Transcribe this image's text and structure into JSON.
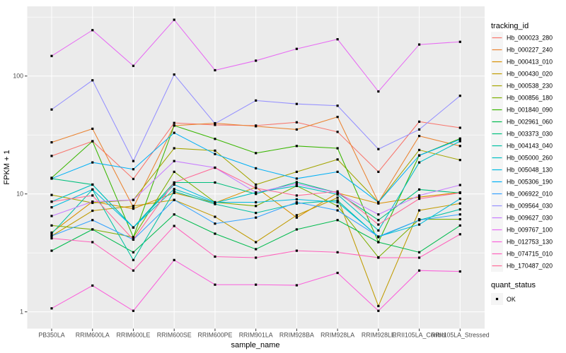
{
  "figure": {
    "x_axis_title": "sample_name",
    "y_axis_title": "FPKM + 1",
    "y_tick_labels": [
      "100",
      "10",
      "1"
    ]
  },
  "legend": {
    "tracking_title": "tracking_id",
    "quant_title": "quant_status",
    "quant_ok_label": "OK",
    "quant_key_shape": "black-square-point"
  },
  "chart_data": {
    "type": "line",
    "title": "",
    "xlabel": "sample_name",
    "ylabel": "FPKM + 1",
    "y_scale": "log10",
    "ylim": [
      0.72,
      390
    ],
    "y_ticks": [
      100,
      10,
      1
    ],
    "y_minor": [
      316.2,
      31.62,
      3.162
    ],
    "grid": true,
    "grid_color": "#FFFFFF",
    "panel_bg": "#EBEBEB",
    "point_color": "#000000",
    "point_shape": "square",
    "axis_text_color": "#4D4D4D",
    "legend_position": "right",
    "legend_key_bg": "#F5F5F5",
    "categories": [
      "PB350LA",
      "RRIM600LA",
      "RRIM600LE",
      "RRIM600SE",
      "RRIM600PE",
      "RRIM901LA",
      "RRIM928BA",
      "RRIM928LA",
      "RRIM928LE",
      "RRII105LA_Control",
      "RRII105LA_Stressed"
    ],
    "series": [
      {
        "name": "Hb_000023_280",
        "color": "#F8766D",
        "values": [
          21,
          28,
          13.4,
          40,
          38.5,
          38,
          40.5,
          33.6,
          15.4,
          41,
          36.4
        ]
      },
      {
        "name": "Hb_000227_240",
        "color": "#EA8331",
        "values": [
          27.4,
          35.7,
          7.7,
          38,
          39.8,
          37.5,
          35.2,
          45,
          8.5,
          31,
          25.5
        ]
      },
      {
        "name": "Hb_000413_010",
        "color": "#D89000",
        "values": [
          4.7,
          8.6,
          7.5,
          10.2,
          8.4,
          11.4,
          6.3,
          10.2,
          8.3,
          9.4,
          10.3
        ]
      },
      {
        "name": "Hb_000430_020",
        "color": "#C09B00",
        "values": [
          4.4,
          7.2,
          7.9,
          8.9,
          6.4,
          3.9,
          6.6,
          9.3,
          1.12,
          7.25,
          8.3
        ]
      },
      {
        "name": "Hb_000538_230",
        "color": "#A3A500",
        "values": [
          9.8,
          8.4,
          8.9,
          24.4,
          23.3,
          12,
          15.4,
          19.6,
          8.5,
          23.6,
          19.4
        ]
      },
      {
        "name": "Hb_000856_180",
        "color": "#7CAE00",
        "values": [
          5.4,
          5,
          4.3,
          15.4,
          8.5,
          7.9,
          11.7,
          7.9,
          2.9,
          6.1,
          6.1
        ]
      },
      {
        "name": "Hb_001840_090",
        "color": "#39B600",
        "values": [
          13.7,
          28,
          4.3,
          38,
          29.3,
          22.2,
          25.5,
          24.4,
          3.9,
          21.2,
          29.5
        ]
      },
      {
        "name": "Hb_002961_060",
        "color": "#00BB4E",
        "values": [
          3.3,
          5,
          3.2,
          6.7,
          4.6,
          3.4,
          5,
          6,
          3.9,
          3.2,
          5.4
        ]
      },
      {
        "name": "Hb_003373_030",
        "color": "#00BF7D",
        "values": [
          13.5,
          12,
          5.2,
          12.5,
          12.5,
          10,
          12.6,
          10.2,
          6,
          10.9,
          10.2
        ]
      },
      {
        "name": "Hb_004143_040",
        "color": "#00C1A3",
        "values": [
          4.6,
          10.9,
          2.75,
          10.5,
          8.2,
          6.9,
          8.3,
          8.8,
          4.3,
          6,
          7.4
        ]
      },
      {
        "name": "Hb_005000_260",
        "color": "#00BFC4",
        "values": [
          8.6,
          12,
          5.2,
          11,
          8.4,
          10.3,
          11.7,
          9.9,
          4.9,
          18.5,
          28
        ]
      },
      {
        "name": "Hb_005048_130",
        "color": "#00BAE0",
        "values": [
          7.7,
          10.9,
          5.2,
          12,
          8.5,
          8.5,
          9,
          8.5,
          4.35,
          5.5,
          9.1
        ]
      },
      {
        "name": "Hb_005306_190",
        "color": "#00B0F6",
        "values": [
          13.5,
          18.5,
          16.2,
          33,
          21.8,
          16.5,
          13.5,
          15.4,
          8.5,
          21.2,
          29
        ]
      },
      {
        "name": "Hb_006922_010",
        "color": "#35A2FF",
        "values": [
          4.4,
          6,
          4.1,
          8.9,
          5.6,
          6.3,
          8.5,
          7.25,
          4.35,
          6,
          6.7
        ]
      },
      {
        "name": "Hb_009564_030",
        "color": "#9590FF",
        "values": [
          52,
          92,
          19,
          103,
          39.5,
          62,
          58,
          56,
          24,
          35.2,
          68
        ]
      },
      {
        "name": "Hb_009627_030",
        "color": "#C77CFF",
        "values": [
          6.5,
          8.6,
          8.9,
          19,
          16.7,
          10.3,
          12.2,
          10.2,
          6.7,
          9.7,
          11.9
        ]
      },
      {
        "name": "Hb_009767_100",
        "color": "#E76BF3",
        "values": [
          148,
          245,
          122,
          300,
          112,
          135,
          170,
          205,
          74,
          185,
          195
        ]
      },
      {
        "name": "Hb_012753_130",
        "color": "#FA62DB",
        "values": [
          1.07,
          1.67,
          1.02,
          2.75,
          1.7,
          1.7,
          1.68,
          2.14,
          1.02,
          2.24,
          2.2
        ]
      },
      {
        "name": "Hb_074715_010",
        "color": "#FF62BC",
        "values": [
          4.2,
          3.9,
          2.24,
          5.35,
          2.94,
          2.88,
          3.3,
          3.2,
          2.88,
          2.88,
          4.55
        ]
      },
      {
        "name": "Hb_170487_020",
        "color": "#FF6A98",
        "values": [
          8.6,
          9.7,
          4.1,
          12.5,
          16.7,
          11.2,
          9.7,
          10.5,
          5.5,
          9.1,
          10.2
        ]
      }
    ],
    "quant_status": "OK"
  }
}
